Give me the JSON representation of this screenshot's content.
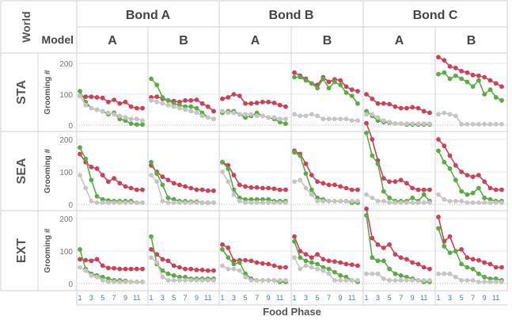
{
  "header": {
    "world_label": "World",
    "model_label": "Model",
    "bonds": [
      "Bond A",
      "Bond B",
      "Bond C"
    ],
    "models": [
      "A",
      "B",
      "A",
      "B",
      "A",
      "B"
    ]
  },
  "rows": [
    "STA",
    "SEA",
    "EXT"
  ],
  "y_axis_label": "Grooming #",
  "x_axis_label": "Food Phase",
  "y_ticks": [
    "0",
    "100",
    "200"
  ],
  "x_ticks": [
    "1",
    "3",
    "5",
    "7",
    "9",
    "11"
  ],
  "colors": {
    "red": "#cc4158",
    "green": "#5aab45",
    "gray": "#c8c4c4",
    "grid": "#e8e8e8",
    "baseline": "#b8b8b8",
    "border": "#d0d0d0",
    "header_text": "#555555",
    "tick_text": "#777777",
    "x_tick_text": "#4c78a8"
  },
  "chart_data": {
    "type": "line",
    "x": [
      1,
      2,
      3,
      4,
      5,
      6,
      7,
      8,
      9,
      10,
      11,
      12
    ],
    "ylim": [
      0,
      240
    ],
    "series_order": [
      "red",
      "green",
      "gray"
    ],
    "panels": [
      [
        {
          "red": [
            95,
            92,
            92,
            90,
            88,
            75,
            82,
            70,
            75,
            60,
            55,
            55
          ],
          "green": [
            110,
            75,
            55,
            50,
            45,
            35,
            40,
            20,
            15,
            5,
            2,
            2
          ],
          "gray": [
            95,
            65,
            55,
            50,
            45,
            40,
            35,
            30,
            25,
            20,
            20,
            15
          ]
        },
        {
          "red": [
            90,
            92,
            85,
            80,
            78,
            75,
            80,
            80,
            82,
            70,
            60,
            45
          ],
          "green": [
            150,
            130,
            90,
            80,
            70,
            65,
            60,
            60,
            55,
            40,
            25,
            20
          ],
          "gray": [
            80,
            75,
            70,
            65,
            60,
            55,
            50,
            45,
            40,
            30,
            25,
            20
          ]
        },
        {
          "red": [
            85,
            90,
            100,
            95,
            70,
            70,
            72,
            75,
            75,
            72,
            65,
            60
          ],
          "green": [
            40,
            45,
            45,
            35,
            25,
            30,
            40,
            30,
            25,
            20,
            10,
            5
          ],
          "gray": [
            45,
            40,
            40,
            35,
            35,
            35,
            30,
            30,
            25,
            25,
            20,
            20
          ]
        },
        {
          "red": [
            170,
            160,
            150,
            135,
            130,
            155,
            140,
            148,
            145,
            125,
            115,
            110
          ],
          "green": [
            155,
            155,
            145,
            135,
            120,
            150,
            120,
            140,
            130,
            105,
            95,
            70
          ],
          "gray": [
            35,
            30,
            30,
            35,
            30,
            20,
            20,
            20,
            20,
            20,
            15,
            15
          ]
        },
        {
          "red": [
            100,
            85,
            70,
            70,
            68,
            60,
            55,
            55,
            58,
            55,
            45,
            40
          ],
          "green": [
            45,
            30,
            15,
            10,
            8,
            5,
            5,
            2,
            2,
            2,
            2,
            2
          ],
          "gray": [
            35,
            35,
            25,
            15,
            10,
            5,
            5,
            5,
            5,
            5,
            5,
            5
          ]
        },
        {
          "red": [
            220,
            210,
            190,
            185,
            175,
            170,
            162,
            160,
            155,
            145,
            135,
            125
          ],
          "green": [
            165,
            170,
            150,
            160,
            150,
            140,
            125,
            145,
            100,
            115,
            90,
            80
          ],
          "gray": [
            35,
            40,
            35,
            30,
            3,
            3,
            3,
            3,
            3,
            3,
            3,
            3
          ]
        }
      ],
      [
        {
          "red": [
            155,
            130,
            115,
            110,
            90,
            70,
            80,
            65,
            55,
            50,
            45,
            45
          ],
          "green": [
            175,
            140,
            75,
            25,
            15,
            12,
            10,
            10,
            10,
            10,
            5,
            5
          ],
          "gray": [
            90,
            50,
            10,
            5,
            5,
            5,
            5,
            5,
            5,
            5,
            5,
            5
          ]
        },
        {
          "red": [
            120,
            100,
            85,
            75,
            65,
            60,
            55,
            50,
            45,
            45,
            42,
            42
          ],
          "green": [
            130,
            95,
            60,
            20,
            15,
            10,
            10,
            8,
            8,
            5,
            5,
            5
          ],
          "gray": [
            90,
            70,
            10,
            5,
            5,
            5,
            5,
            5,
            5,
            5,
            5,
            5
          ]
        },
        {
          "red": [
            130,
            120,
            90,
            60,
            55,
            52,
            52,
            50,
            50,
            48,
            45,
            45
          ],
          "green": [
            130,
            110,
            45,
            20,
            15,
            15,
            15,
            15,
            15,
            10,
            10,
            10
          ],
          "gray": [
            100,
            70,
            30,
            10,
            5,
            5,
            5,
            5,
            5,
            5,
            5,
            5
          ]
        },
        {
          "red": [
            165,
            155,
            125,
            90,
            70,
            65,
            60,
            60,
            55,
            50,
            45,
            45
          ],
          "green": [
            160,
            150,
            95,
            45,
            20,
            15,
            10,
            10,
            10,
            10,
            5,
            5
          ],
          "gray": [
            70,
            75,
            50,
            30,
            10,
            10,
            10,
            10,
            10,
            10,
            10,
            10
          ]
        },
        {
          "red": [
            250,
            200,
            135,
            80,
            70,
            70,
            75,
            65,
            50,
            45,
            45,
            45
          ],
          "green": [
            220,
            150,
            125,
            40,
            20,
            10,
            10,
            10,
            20,
            10,
            30,
            10
          ],
          "gray": [
            30,
            20,
            10,
            10,
            5,
            5,
            5,
            5,
            5,
            5,
            5,
            5
          ]
        },
        {
          "red": [
            200,
            180,
            150,
            120,
            100,
            90,
            85,
            90,
            70,
            50,
            45,
            45
          ],
          "green": [
            165,
            130,
            110,
            75,
            40,
            30,
            35,
            50,
            20,
            15,
            10,
            10
          ],
          "gray": [
            30,
            15,
            10,
            10,
            10,
            5,
            5,
            5,
            5,
            5,
            5,
            5
          ]
        }
      ],
      [
        {
          "red": [
            75,
            72,
            70,
            75,
            55,
            48,
            47,
            45,
            45,
            45,
            45,
            45
          ],
          "green": [
            105,
            45,
            30,
            25,
            20,
            15,
            10,
            10,
            8,
            5,
            5,
            5
          ],
          "gray": [
            50,
            40,
            25,
            20,
            10,
            5,
            5,
            5,
            5,
            5,
            5,
            5
          ]
        },
        {
          "red": [
            105,
            90,
            75,
            70,
            55,
            50,
            45,
            45,
            42,
            42,
            40,
            40
          ],
          "green": [
            145,
            60,
            40,
            30,
            25,
            20,
            20,
            15,
            15,
            15,
            15,
            15
          ],
          "gray": [
            80,
            65,
            20,
            10,
            10,
            10,
            10,
            10,
            10,
            10,
            10,
            10
          ]
        },
        {
          "red": [
            120,
            110,
            70,
            72,
            72,
            70,
            65,
            62,
            60,
            55,
            50,
            50
          ],
          "green": [
            105,
            80,
            60,
            65,
            30,
            15,
            10,
            10,
            10,
            10,
            5,
            5
          ],
          "gray": [
            55,
            45,
            45,
            40,
            20,
            10,
            10,
            10,
            10,
            10,
            10,
            10
          ]
        },
        {
          "red": [
            145,
            100,
            90,
            80,
            90,
            75,
            70,
            68,
            65,
            60,
            58,
            55
          ],
          "green": [
            130,
            80,
            70,
            65,
            60,
            50,
            45,
            35,
            25,
            20,
            10,
            5
          ],
          "gray": [
            80,
            45,
            55,
            50,
            45,
            40,
            30,
            10,
            10,
            10,
            10,
            10
          ]
        },
        {
          "red": [
            230,
            140,
            120,
            110,
            120,
            90,
            80,
            75,
            65,
            60,
            50,
            45
          ],
          "green": [
            210,
            80,
            70,
            70,
            45,
            30,
            25,
            20,
            15,
            10,
            5,
            5
          ],
          "gray": [
            30,
            30,
            30,
            15,
            10,
            10,
            10,
            10,
            10,
            10,
            10,
            10
          ]
        },
        {
          "red": [
            205,
            130,
            145,
            100,
            105,
            80,
            75,
            72,
            65,
            60,
            50,
            50
          ],
          "green": [
            170,
            115,
            95,
            100,
            60,
            50,
            45,
            30,
            20,
            15,
            15,
            10
          ],
          "gray": [
            30,
            30,
            30,
            20,
            10,
            10,
            10,
            5,
            5,
            5,
            5,
            5
          ]
        }
      ]
    ]
  }
}
